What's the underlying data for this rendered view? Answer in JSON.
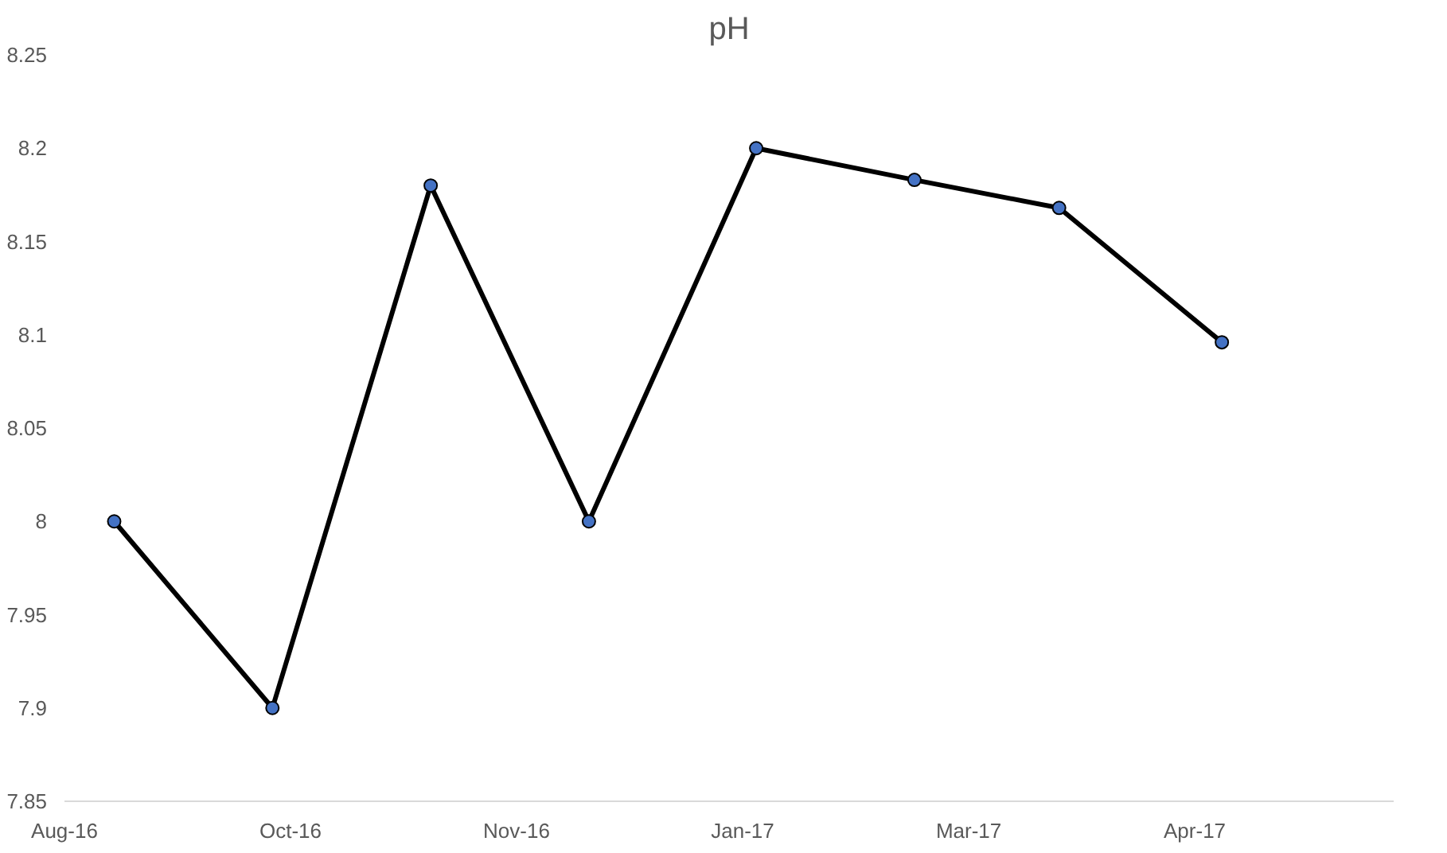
{
  "chart_data": {
    "type": "line",
    "title": "pH",
    "x": [
      "2016-08-31",
      "2016-10-05",
      "2016-11-09",
      "2016-12-14",
      "2017-01-20",
      "2017-02-24",
      "2017-03-28",
      "2017-05-03"
    ],
    "series": [
      {
        "color": "#000000",
        "values": [
          8.0,
          7.9,
          8.18,
          8.0,
          8.2,
          8.183,
          8.168,
          8.096
        ]
      }
    ],
    "marker": "circle",
    "line_style": "solid",
    "grid": false,
    "xlim": [
      "2016-08-20",
      "2017-06-10"
    ],
    "xticks": [
      {
        "value": "2016-08-20",
        "label": "Aug-16"
      },
      {
        "value": "2016-10-09",
        "label": "Oct-16"
      },
      {
        "value": "2016-11-28",
        "label": "Nov-16"
      },
      {
        "value": "2017-01-17",
        "label": "Jan-17"
      },
      {
        "value": "2017-03-08",
        "label": "Mar-17"
      },
      {
        "value": "2017-04-27",
        "label": "Apr-17"
      }
    ],
    "ylim": [
      7.85,
      8.25
    ],
    "yticks": [
      7.85,
      7.9,
      7.95,
      8,
      8.05,
      8.1,
      8.15,
      8.2,
      8.25
    ]
  }
}
